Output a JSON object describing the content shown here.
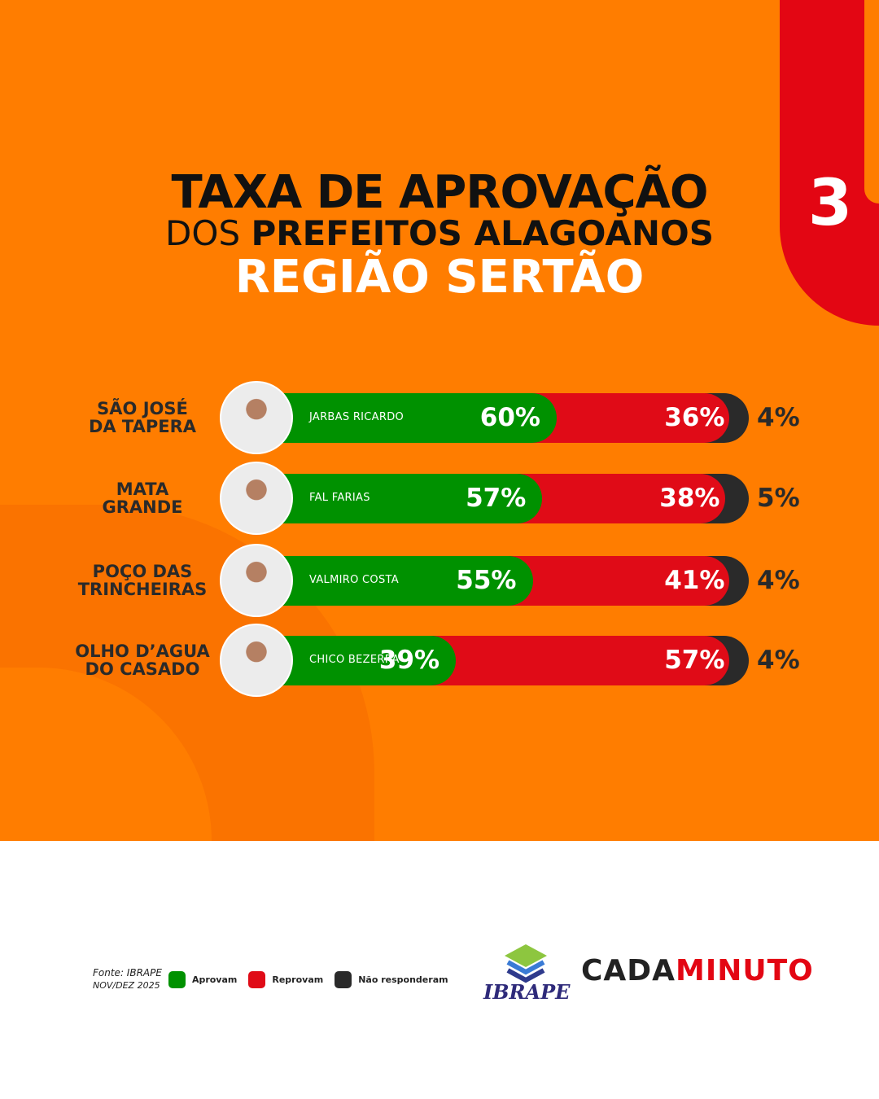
{
  "page_number": "3",
  "title": {
    "line1": "TAXA DE APROVAÇÃO",
    "line2_light": "DOS ",
    "line2_bold": "PREFEITOS ALAGOANOS",
    "line3": "REGIÃO SERTÃO"
  },
  "colors": {
    "background": "#FF7D00",
    "approve": "#009100",
    "disapprove": "#E00B17",
    "no_answer": "#2A2A2A"
  },
  "chart_data": {
    "type": "bar",
    "stacked": true,
    "orientation": "horizontal",
    "categories": [
      "SÃO JOSÉ DA TAPERA",
      "MATA GRANDE",
      "POÇO DAS TRINCHEIRAS",
      "OLHO D’AGUA DO CASADO"
    ],
    "rows": [
      {
        "city_l1": "SÃO JOSÉ",
        "city_l2": "DA TAPERA",
        "mayor": "JARBAS RICARDO",
        "approve": 60,
        "disapprove": 36,
        "no_answer": 4,
        "approve_label": "60%",
        "disapprove_label": "36%",
        "no_answer_label": "4%"
      },
      {
        "city_l1": "MATA",
        "city_l2": "GRANDE",
        "mayor": "FAL FARIAS",
        "approve": 57,
        "disapprove": 38,
        "no_answer": 5,
        "approve_label": "57%",
        "disapprove_label": "38%",
        "no_answer_label": "5%"
      },
      {
        "city_l1": "POÇO DAS",
        "city_l2": "TRINCHEIRAS",
        "mayor": "VALMIRO COSTA",
        "approve": 55,
        "disapprove": 41,
        "no_answer": 4,
        "approve_label": "55%",
        "disapprove_label": "41%",
        "no_answer_label": "4%"
      },
      {
        "city_l1": "OLHO D’AGUA",
        "city_l2": "DO CASADO",
        "mayor": "CHICO BEZERRA",
        "approve": 39,
        "disapprove": 57,
        "no_answer": 4,
        "approve_label": "39%",
        "disapprove_label": "57%",
        "no_answer_label": "4%"
      }
    ],
    "series": [
      {
        "name": "Aprovam"
      },
      {
        "name": "Reprovam"
      },
      {
        "name": "Não responderam"
      }
    ]
  },
  "footer": {
    "source": "Fonte: IBRAPE",
    "date": "NOV/DEZ 2025",
    "legend": [
      "Aprovam",
      "Reprovam",
      "Não responderam"
    ],
    "logo_ibrape": "IBRAPE",
    "logo_cm_a": "CADA",
    "logo_cm_b": "MINUTO"
  }
}
